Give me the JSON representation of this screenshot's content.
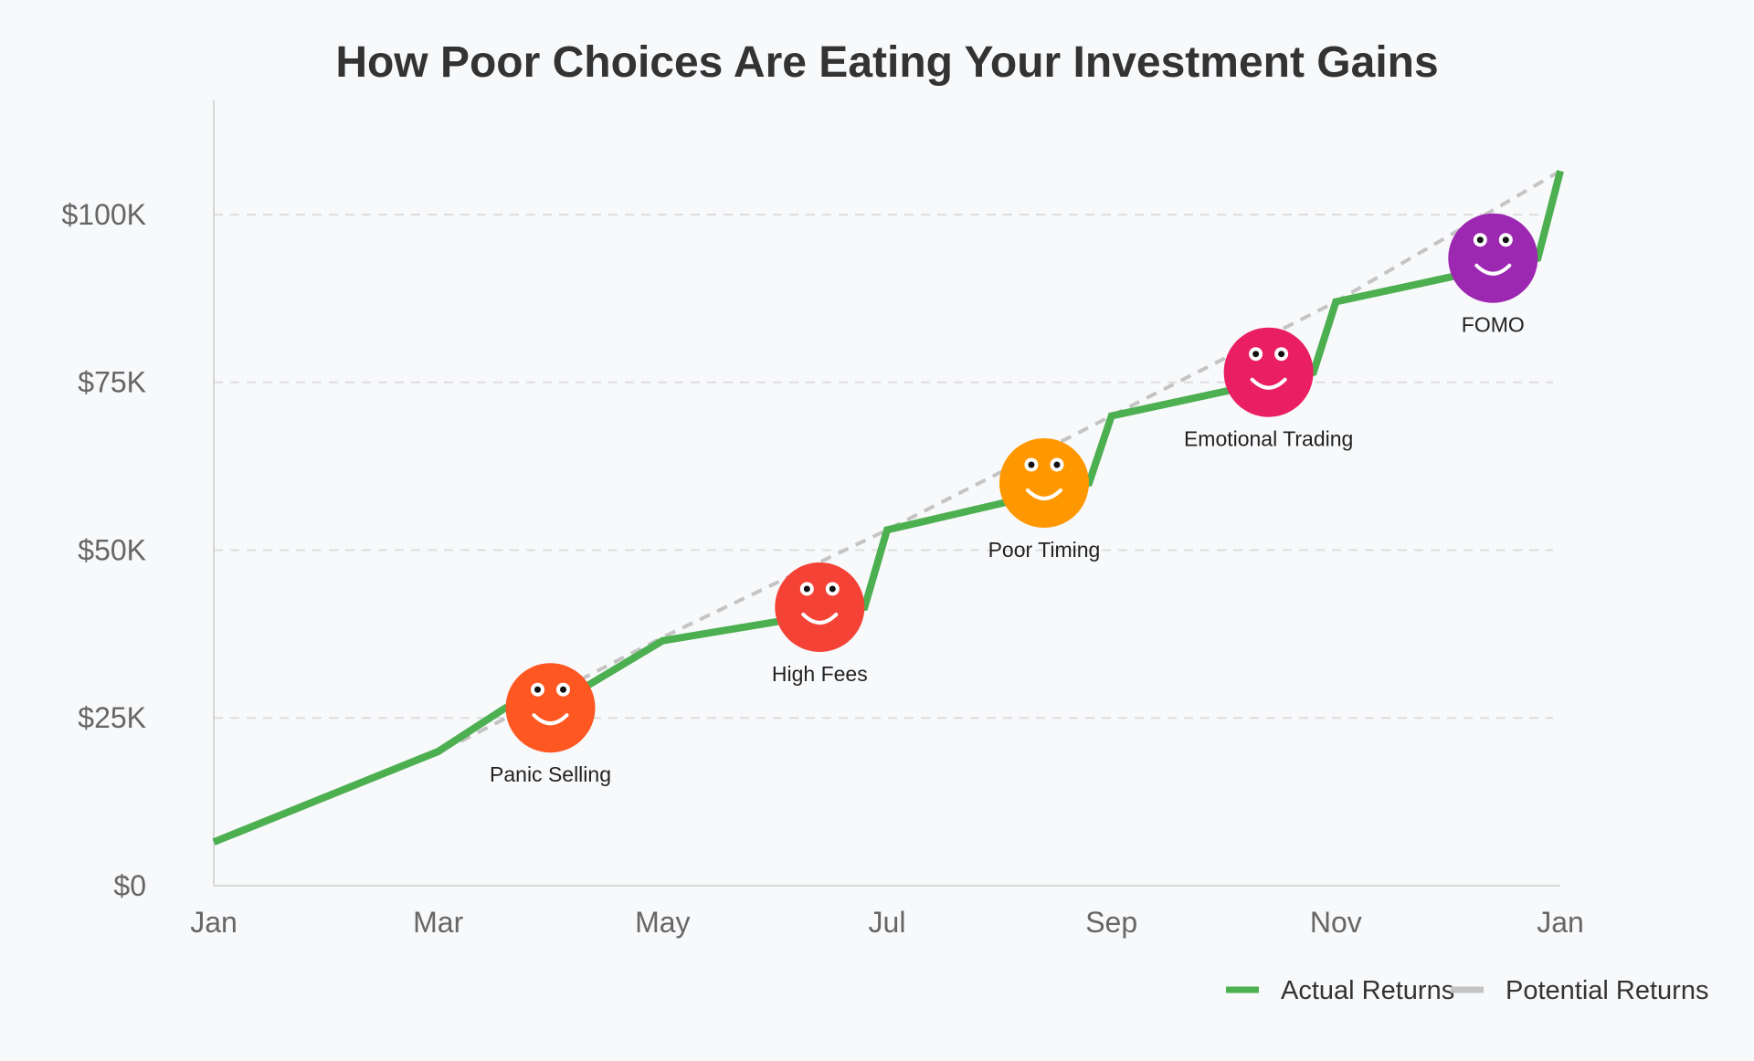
{
  "chart_data": {
    "type": "line",
    "title": "How Poor Choices Are Eating Your Investment Gains",
    "xlabel": "",
    "ylabel": "",
    "x_ticks": [
      "Jan",
      "Mar",
      "May",
      "Jul",
      "Sep",
      "Nov",
      "Jan"
    ],
    "y_ticks": [
      "$0",
      "$25K",
      "$50K",
      "$75K",
      "$100K"
    ],
    "y_tick_values": [
      0,
      25000,
      50000,
      75000,
      100000
    ],
    "ylim": [
      0,
      117000
    ],
    "xlim": [
      0,
      12
    ],
    "grid": true,
    "legend_position": "bottom-right",
    "series": [
      {
        "name": "Actual Returns",
        "color": "#4caf50",
        "style": "solid",
        "x": [
          0,
          2,
          2.6,
          3,
          4,
          5.8,
          6,
          7.8,
          8,
          9.8,
          10,
          11.8,
          12
        ],
        "y": [
          6500,
          20000,
          26500,
          26500,
          36500,
          41500,
          53000,
          60000,
          70000,
          76500,
          87000,
          93500,
          106500
        ]
      },
      {
        "name": "Potential Returns",
        "color": "#c4c4c4",
        "style": "dashed",
        "x": [
          2.2,
          4,
          6,
          8,
          10,
          12
        ],
        "y": [
          21500,
          37000,
          53000,
          70000,
          87000,
          106500
        ]
      }
    ],
    "annotations": [
      {
        "label": "Panic Selling",
        "x": 3,
        "y": 26500,
        "color": "#ff5722"
      },
      {
        "label": "High Fees",
        "x": 5.4,
        "y": 41500,
        "color": "#f44336"
      },
      {
        "label": "Poor Timing",
        "x": 7.4,
        "y": 60000,
        "color": "#ff9800"
      },
      {
        "label": "Emotional Trading",
        "x": 9.4,
        "y": 76500,
        "color": "#e91e63"
      },
      {
        "label": "FOMO",
        "x": 11.4,
        "y": 93500,
        "color": "#9c27b0"
      }
    ]
  }
}
